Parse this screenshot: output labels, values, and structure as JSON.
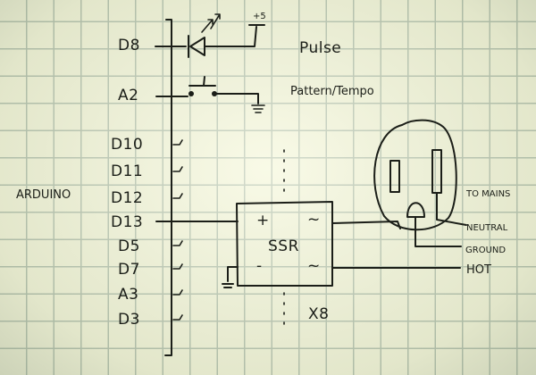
{
  "title_label": "ARDUINO",
  "arduino_pins": [
    "D8",
    "A2",
    "D10",
    "D11",
    "D12",
    "D13",
    "D5",
    "D7",
    "A3",
    "D3"
  ],
  "led": {
    "supply": "+5",
    "label": "Pulse"
  },
  "switch": {
    "label": "Pattern/Tempo"
  },
  "ssr": {
    "label": "SSR",
    "plus": "+",
    "minus": "-",
    "ac1": "~",
    "ac2": "~",
    "multiplier": "X8"
  },
  "mains": {
    "to_mains": "TO MAINS",
    "neutral": "NEUTRAL",
    "ground": "GROUND",
    "hot": "HOT"
  },
  "ink_color": "#1b1e18",
  "paper_color": "#f1f4dc",
  "grid_color": "#9fb1a3"
}
